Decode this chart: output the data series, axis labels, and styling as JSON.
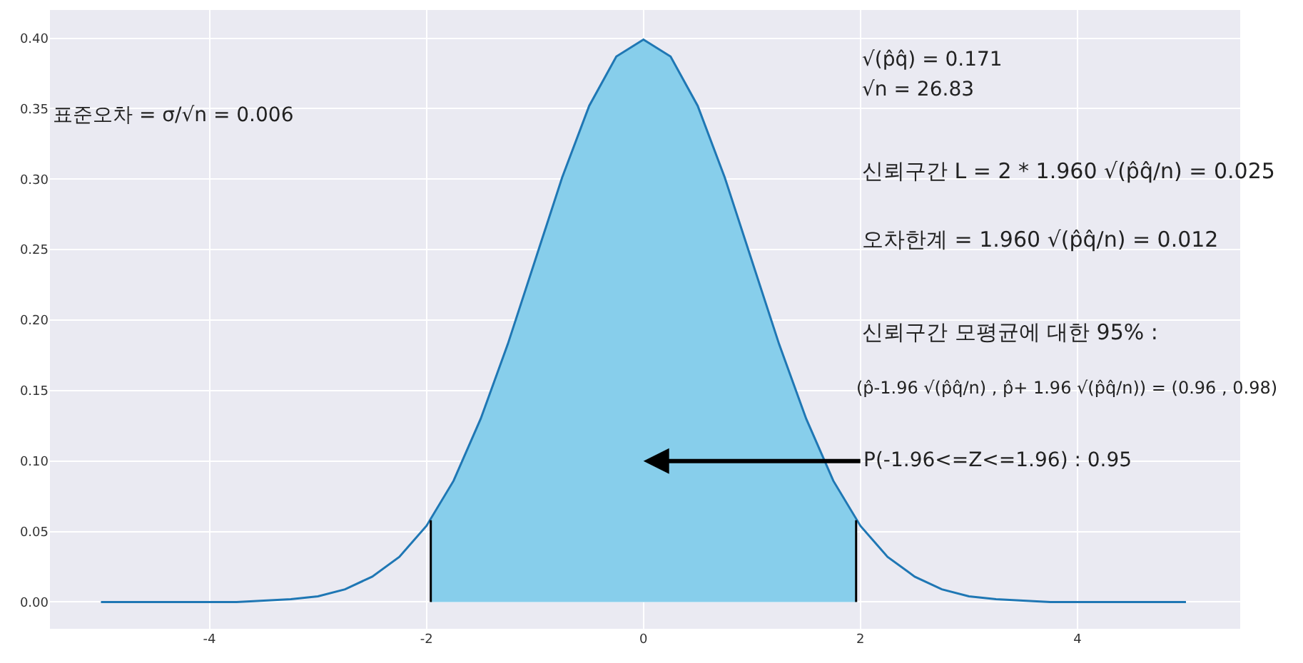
{
  "chart_data": {
    "type": "line",
    "series": [
      {
        "type": "area",
        "color": "#87ceeb",
        "x": [
          -1.96,
          -1.75,
          -1.5,
          -1.25,
          -1,
          -0.75,
          -0.5,
          -0.25,
          0,
          0.25,
          0.5,
          0.75,
          1,
          1.25,
          1.5,
          1.75,
          1.96
        ],
        "values": [
          0.058,
          0.086,
          0.13,
          0.183,
          0.242,
          0.301,
          0.352,
          0.387,
          0.399,
          0.387,
          0.352,
          0.301,
          0.242,
          0.183,
          0.13,
          0.086,
          0.058
        ]
      },
      {
        "color": "#1f77b4",
        "x": [
          -5,
          -4.75,
          -4.5,
          -4.25,
          -4,
          -3.75,
          -3.5,
          -3.25,
          -3,
          -2.75,
          -2.5,
          -2.25,
          -2,
          -1.75,
          -1.5,
          -1.25,
          -1,
          -0.75,
          -0.5,
          -0.25,
          0,
          0.25,
          0.5,
          0.75,
          1,
          1.25,
          1.5,
          1.75,
          2,
          2.25,
          2.5,
          2.75,
          3,
          3.25,
          3.5,
          3.75,
          4,
          4.25,
          4.5,
          4.75,
          5
        ],
        "values": [
          0,
          0,
          0,
          0,
          0,
          0,
          0.001,
          0.002,
          0.004,
          0.009,
          0.018,
          0.032,
          0.054,
          0.086,
          0.13,
          0.183,
          0.242,
          0.301,
          0.352,
          0.387,
          0.399,
          0.387,
          0.352,
          0.301,
          0.242,
          0.183,
          0.13,
          0.086,
          0.054,
          0.032,
          0.018,
          0.009,
          0.004,
          0.002,
          0.001,
          0,
          0,
          0,
          0,
          0,
          0
        ]
      },
      {
        "color": "#000000",
        "x": [
          -1.96,
          -1.96
        ],
        "values": [
          0,
          0.058
        ]
      },
      {
        "color": "#000000",
        "x": [
          1.96,
          1.96
        ],
        "values": [
          0,
          0.058
        ]
      }
    ],
    "xlim": [
      -5.47,
      5.5
    ],
    "xticks": [
      -4,
      -2,
      0,
      2,
      4
    ],
    "ylim": [
      -0.019,
      0.42
    ],
    "yticks": [
      {
        "value": 0,
        "label": "0.00"
      },
      {
        "value": 0.05,
        "label": "0.05"
      },
      {
        "value": 0.1,
        "label": "0.10"
      },
      {
        "value": 0.15,
        "label": "0.15"
      },
      {
        "value": 0.2,
        "label": "0.20"
      },
      {
        "value": 0.25,
        "label": "0.25"
      },
      {
        "value": 0.3,
        "label": "0.30"
      },
      {
        "value": 0.35,
        "label": "0.35"
      },
      {
        "value": 0.4,
        "label": "0.40"
      }
    ],
    "grid": true,
    "annotations": [
      "표준오차 = σ/√n = 0.006",
      "√(p̂q̂) = 0.171",
      "√n = 26.83",
      "신뢰구간 L = 2 * 1.960 √(p̂q̂/n) = 0.025",
      "오차한계 = 1.960 √(p̂q̂/n) = 0.012",
      "신뢰구간 모평균에 대한 95% :",
      "(p̂-1.96 √(p̂q̂/n) , p̂+ 1.96 √(p̂q̂/n)) = (0.96 , 0.98)",
      "P(-1.96<=Z<=1.96) : 0.95"
    ]
  }
}
